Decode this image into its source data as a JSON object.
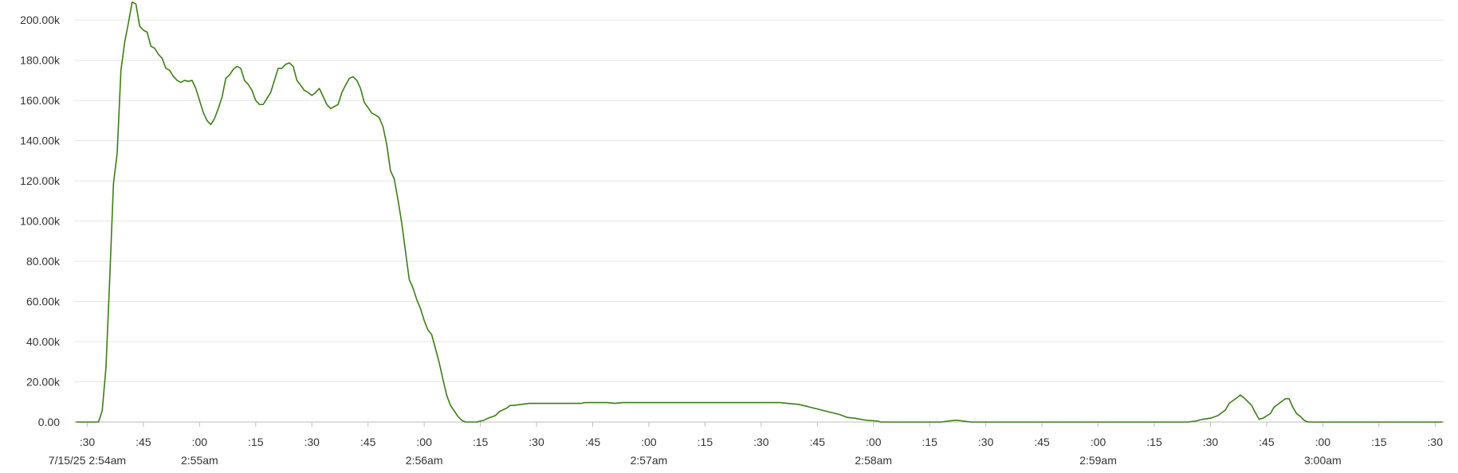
{
  "chart_data": {
    "type": "line",
    "color": "#3c7d16",
    "grid": true,
    "x": [
      27,
      33,
      34,
      35,
      36,
      37,
      38,
      39,
      40,
      41,
      42,
      43,
      44,
      45,
      46,
      47,
      48,
      49,
      50,
      51,
      52,
      53,
      54,
      55,
      56,
      57,
      58,
      59,
      60,
      61,
      62,
      63,
      64,
      65,
      66,
      67,
      68,
      69,
      70,
      71,
      72,
      73,
      74,
      75,
      76,
      77,
      78,
      79,
      80,
      81,
      82,
      83,
      84,
      85,
      86,
      87,
      88,
      89,
      90,
      91,
      92,
      93,
      94,
      95,
      96,
      97,
      98,
      99,
      100,
      101,
      102,
      103,
      104,
      105,
      106,
      107,
      108,
      109,
      110,
      111,
      112,
      113,
      114,
      115,
      116,
      117,
      118,
      119,
      120,
      121,
      122,
      123,
      124,
      125,
      126,
      127,
      128,
      129,
      130,
      131,
      134,
      135,
      136,
      137,
      139,
      140,
      142,
      143,
      144,
      146,
      148,
      156,
      162,
      163,
      169,
      171,
      173,
      181,
      215,
      217,
      220,
      222,
      225,
      228,
      231,
      233,
      235,
      238,
      241,
      242,
      258,
      260,
      262,
      264,
      266,
      324,
      326,
      328,
      330,
      332,
      334,
      335,
      337,
      338,
      339,
      341,
      342,
      343,
      344,
      346,
      347,
      349,
      350,
      351,
      352,
      353,
      354,
      355,
      356,
      392
    ],
    "values": [
      0,
      0,
      5600,
      27000,
      71000,
      118500,
      134000,
      175000,
      189000,
      198600,
      209000,
      208000,
      197000,
      195000,
      194000,
      187000,
      186000,
      183000,
      181000,
      176000,
      175000,
      172000,
      170000,
      169000,
      170000,
      169500,
      170000,
      166000,
      160000,
      154000,
      150000,
      148000,
      151000,
      156000,
      161600,
      171000,
      172700,
      175500,
      177000,
      176000,
      170000,
      168000,
      165000,
      160000,
      158000,
      158000,
      161000,
      164000,
      170000,
      176000,
      176000,
      178000,
      178700,
      177000,
      170000,
      167600,
      165000,
      164000,
      162500,
      164000,
      166000,
      162000,
      158000,
      156000,
      157000,
      158000,
      164000,
      167600,
      171000,
      171800,
      170000,
      166000,
      159000,
      156500,
      153700,
      152800,
      151400,
      147000,
      138000,
      125000,
      121000,
      110600,
      99000,
      85000,
      71000,
      66700,
      61000,
      56500,
      50500,
      45800,
      43500,
      36600,
      29600,
      21300,
      13400,
      8300,
      5600,
      2800,
      900,
      0,
      0,
      500,
      900,
      1900,
      3200,
      5100,
      6900,
      8300,
      8300,
      8800,
      9300,
      9300,
      9300,
      9700,
      9700,
      9300,
      9700,
      9700,
      9700,
      9300,
      8800,
      7900,
      6500,
      5100,
      3700,
      2300,
      1900,
      900,
      500,
      0,
      0,
      500,
      900,
      500,
      0,
      0,
      500,
      1400,
      1900,
      3200,
      6000,
      9300,
      12000,
      13400,
      12000,
      8300,
      4600,
      1400,
      1900,
      4200,
      7400,
      10200,
      11600,
      11600,
      7400,
      4200,
      2800,
      900,
      0,
      0
    ],
    "xlim": [
      26.5,
      392.5
    ],
    "ylim": [
      0,
      210000
    ],
    "yticks": [
      {
        "value": 0,
        "label": "0.00"
      },
      {
        "value": 20000,
        "label": "20.00k"
      },
      {
        "value": 40000,
        "label": "40.00k"
      },
      {
        "value": 60000,
        "label": "60.00k"
      },
      {
        "value": 80000,
        "label": "80.00k"
      },
      {
        "value": 100000,
        "label": "100.00k"
      },
      {
        "value": 120000,
        "label": "120.00k"
      },
      {
        "value": 140000,
        "label": "140.00k"
      },
      {
        "value": 160000,
        "label": "160.00k"
      },
      {
        "value": 180000,
        "label": "180.00k"
      },
      {
        "value": 200000,
        "label": "200.00k"
      }
    ],
    "xticks": [
      {
        "value": 30,
        "label": ":30"
      },
      {
        "value": 45,
        "label": ":45"
      },
      {
        "value": 60,
        "label": ":00"
      },
      {
        "value": 75,
        "label": ":15"
      },
      {
        "value": 90,
        "label": ":30"
      },
      {
        "value": 105,
        "label": ":45"
      },
      {
        "value": 120,
        "label": ":00"
      },
      {
        "value": 135,
        "label": ":15"
      },
      {
        "value": 150,
        "label": ":30"
      },
      {
        "value": 165,
        "label": ":45"
      },
      {
        "value": 180,
        "label": ":00"
      },
      {
        "value": 195,
        "label": ":15"
      },
      {
        "value": 210,
        "label": ":30"
      },
      {
        "value": 225,
        "label": ":45"
      },
      {
        "value": 240,
        "label": ":00"
      },
      {
        "value": 255,
        "label": ":15"
      },
      {
        "value": 270,
        "label": ":30"
      },
      {
        "value": 285,
        "label": ":45"
      },
      {
        "value": 300,
        "label": ":00"
      },
      {
        "value": 315,
        "label": ":15"
      },
      {
        "value": 330,
        "label": ":30"
      },
      {
        "value": 345,
        "label": ":45"
      },
      {
        "value": 360,
        "label": ":00"
      },
      {
        "value": 375,
        "label": ":15"
      },
      {
        "value": 390,
        "label": ":30"
      }
    ],
    "x_major_labels": [
      {
        "value": 30,
        "label": "7/15/25 2:54am"
      },
      {
        "value": 60,
        "label": "2:55am"
      },
      {
        "value": 120,
        "label": "2:56am"
      },
      {
        "value": 180,
        "label": "2:57am"
      },
      {
        "value": 240,
        "label": "2:58am"
      },
      {
        "value": 300,
        "label": "2:59am"
      },
      {
        "value": 360,
        "label": "3:00am"
      }
    ]
  }
}
